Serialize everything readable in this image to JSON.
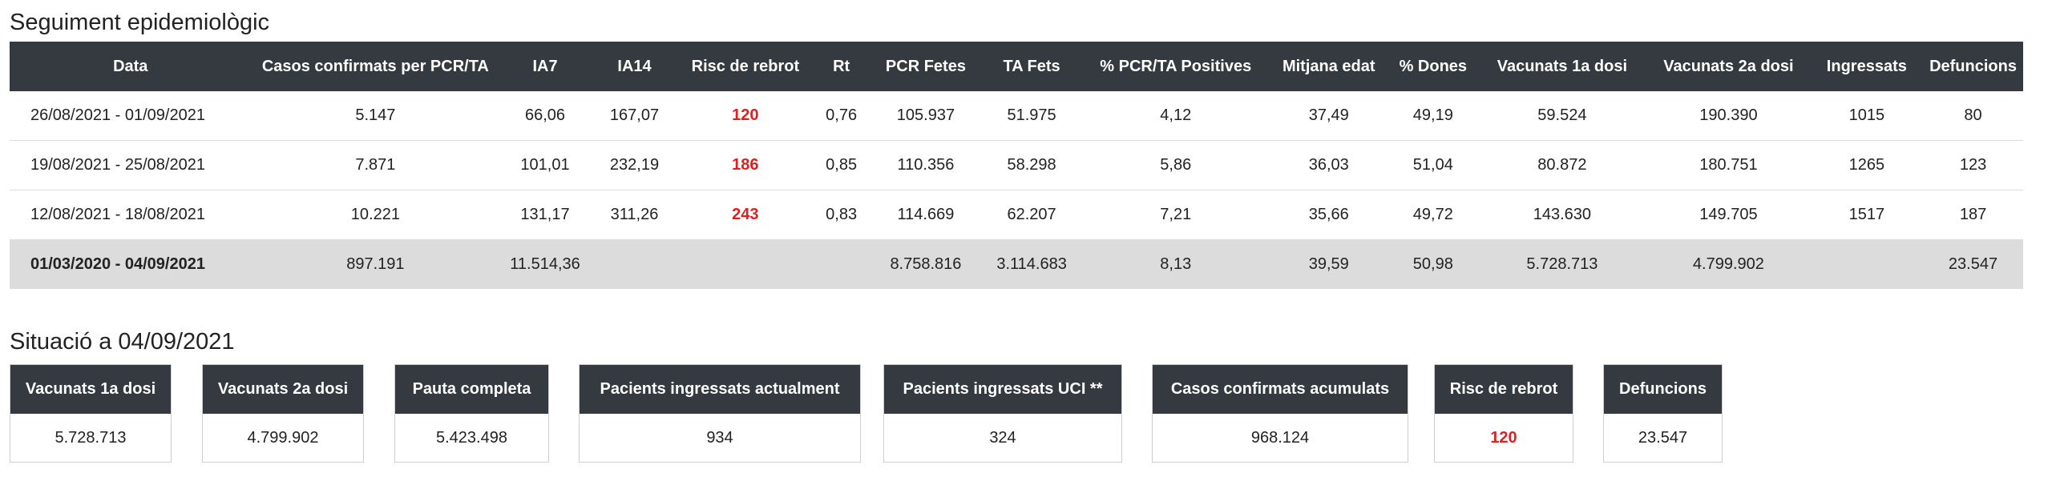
{
  "title": "Seguiment epidemiològic",
  "table": {
    "headers": [
      "Data",
      "Casos confirmats per PCR/TA",
      "IA7",
      "IA14",
      "Risc de rebrot",
      "Rt",
      "PCR Fetes",
      "TA Fets",
      "% PCR/TA Positives",
      "Mitjana edat",
      "% Dones",
      "Vacunats 1a dosi",
      "Vacunats 2a dosi",
      "Ingressats",
      "Defuncions"
    ],
    "rows": [
      [
        "26/08/2021 - 01/09/2021",
        "5.147",
        "66,06",
        "167,07",
        "120",
        "0,76",
        "105.937",
        "51.975",
        "4,12",
        "37,49",
        "49,19",
        "59.524",
        "190.390",
        "1015",
        "80"
      ],
      [
        "19/08/2021 - 25/08/2021",
        "7.871",
        "101,01",
        "232,19",
        "186",
        "0,85",
        "110.356",
        "58.298",
        "5,86",
        "36,03",
        "51,04",
        "80.872",
        "180.751",
        "1265",
        "123"
      ],
      [
        "12/08/2021 - 18/08/2021",
        "10.221",
        "131,17",
        "311,26",
        "243",
        "0,83",
        "114.669",
        "62.207",
        "7,21",
        "35,66",
        "49,72",
        "143.630",
        "149.705",
        "1517",
        "187"
      ],
      [
        "01/03/2020 - 04/09/2021",
        "897.191",
        "11.514,36",
        "",
        "",
        "",
        "8.758.816",
        "3.114.683",
        "8,13",
        "39,59",
        "50,98",
        "5.728.713",
        "4.799.902",
        "",
        "23.547"
      ]
    ]
  },
  "situation": {
    "title": "Situació a 04/09/2021",
    "cards": [
      {
        "label": "Vacunats 1a dosi",
        "value": "5.728.713"
      },
      {
        "label": "Vacunats 2a dosi",
        "value": "4.799.902"
      },
      {
        "label": "Pauta completa",
        "value": "5.423.498"
      },
      {
        "label": "Pacients ingressats actualment",
        "value": "934"
      },
      {
        "label": "Pacients ingressats UCI **",
        "value": "324"
      },
      {
        "label": "Casos confirmats acumulats",
        "value": "968.124"
      },
      {
        "label": "Risc de rebrot",
        "value": "120"
      },
      {
        "label": "Defuncions",
        "value": "23.547"
      }
    ]
  },
  "colors": {
    "header_bg": "#343a40",
    "risk": "#e02020",
    "total_row_bg": "#dcdcdc"
  }
}
